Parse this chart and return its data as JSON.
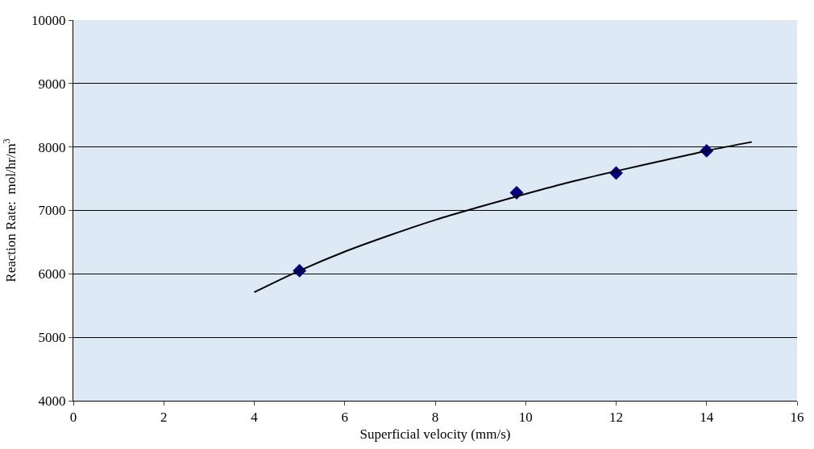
{
  "chart_data": {
    "type": "scatter",
    "xlabel": "Superficial velocity (mm/s)",
    "ylabel": "Reaction Rate:  mol/hr/m$^{3}$",
    "xlim": [
      0,
      16
    ],
    "xticks": [
      0,
      2,
      4,
      6,
      8,
      10,
      12,
      14,
      16
    ],
    "ylim": [
      4000,
      10000
    ],
    "yticks": [
      4000,
      5000,
      6000,
      7000,
      8000,
      9000,
      10000
    ],
    "grid": "y",
    "series": [
      {
        "marker": "diamond",
        "color": "#000080",
        "x": [
          5,
          9.8,
          12,
          14
        ],
        "values": [
          6050,
          7280,
          7590,
          7940
        ]
      },
      {
        "type": "line",
        "marker": "none",
        "color": "#000000",
        "x": [
          4,
          5,
          6,
          7,
          8,
          9,
          10,
          11,
          12,
          13,
          14,
          15
        ],
        "values": [
          5710,
          6050,
          6350,
          6610,
          6850,
          7060,
          7260,
          7450,
          7620,
          7780,
          7940,
          8080
        ]
      }
    ]
  }
}
